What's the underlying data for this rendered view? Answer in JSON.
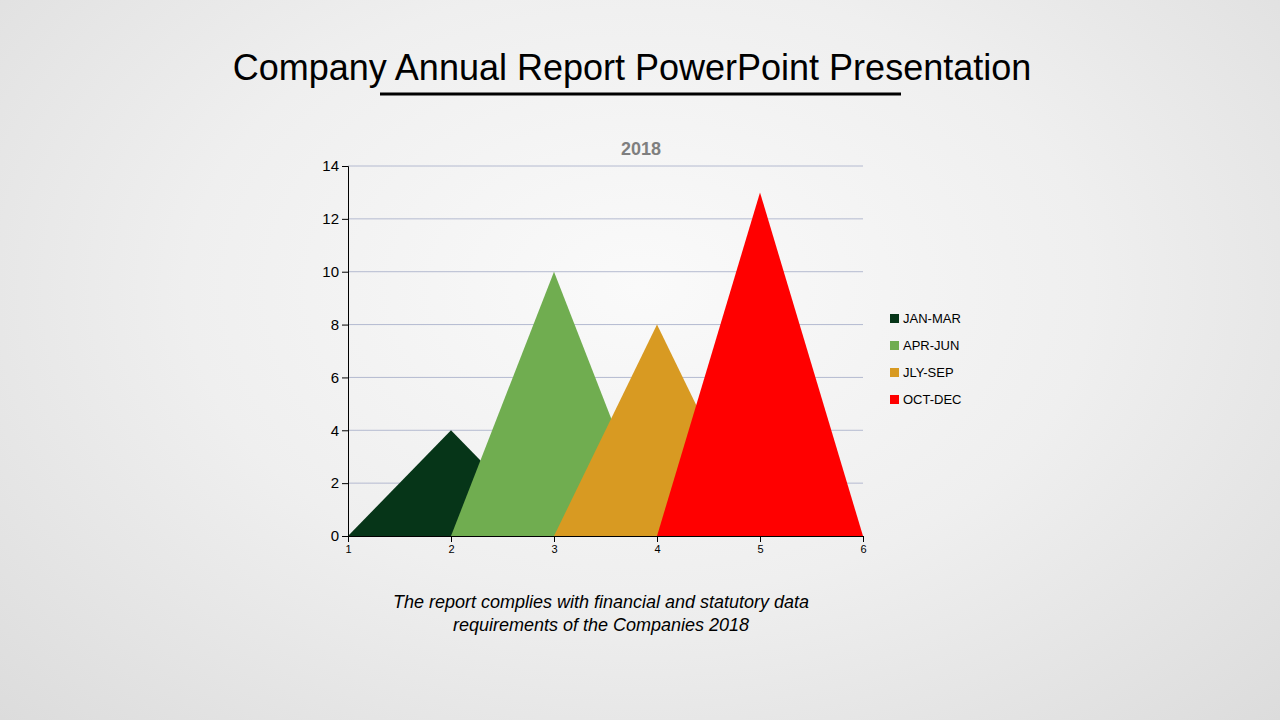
{
  "page": {
    "heading": "Company Annual Report PowerPoint Presentation",
    "caption": [
      "The report complies with financial and statutory data",
      "requirements of the Companies 2018"
    ]
  },
  "chart_data": {
    "type": "area",
    "title": "2018",
    "x": [
      1,
      2,
      3,
      4,
      5,
      6
    ],
    "series": [
      {
        "name": "JAN-MAR",
        "color": "#063518",
        "values": [
          0,
          4,
          0,
          null,
          null,
          null
        ]
      },
      {
        "name": "APR-JUN",
        "color": "#70ad50",
        "values": [
          null,
          0,
          10,
          0,
          null,
          null
        ]
      },
      {
        "name": "JLY-SEP",
        "color": "#d89a22",
        "values": [
          null,
          null,
          0,
          8,
          0,
          null
        ]
      },
      {
        "name": "OCT-DEC",
        "color": "#ff0000",
        "values": [
          null,
          null,
          null,
          0,
          13,
          0
        ]
      }
    ],
    "xlim": [
      1,
      6
    ],
    "xticks": [
      1,
      2,
      3,
      4,
      5,
      6
    ],
    "ylim": [
      0,
      14
    ],
    "yticks": [
      0,
      2,
      4,
      6,
      8,
      10,
      12,
      14
    ],
    "grid": true,
    "legend": "right"
  }
}
